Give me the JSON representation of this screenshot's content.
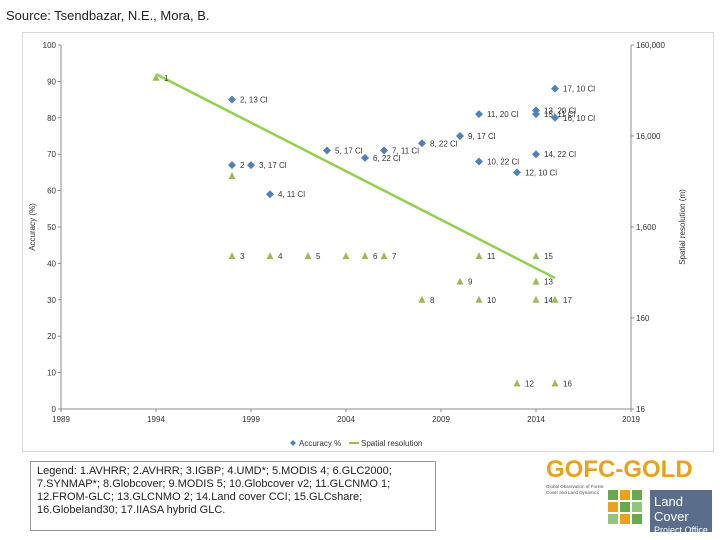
{
  "source": "Source: Tsendbazar, N.E., Mora, B.",
  "legend_text": "Legend: 1.AVHRR; 2.AVHRR; 3.IGBP; 4.UMD*; 5.MODIS 4; 6.GLC2000; 7.SYNMAP*; 8.Globcover; 9.MODIS 5; 10.Globcover v2; 11.GLCNMO 1; 12.FROM-GLC; 13.GLCNMO 2; 14.Land cover CCI; 15.GLCshare; 16.Globeland30; 17.IIASA hybrid GLC.",
  "logo": {
    "title": "GOFC-GOLD",
    "subtitle": "Global Observation of Forest Cover and Land Dynamics",
    "band_line1": "Land Cover",
    "band_line2": "Project Office"
  },
  "colors": {
    "accuracy": "#4f81bd",
    "spatial": "#9bbb59",
    "trend": "#92d050",
    "axis": "#8c8c8c"
  },
  "chart_data": {
    "type": "scatter",
    "xlim": [
      1989,
      2019
    ],
    "x_ticks": [
      1989,
      1994,
      1999,
      2004,
      2009,
      2014,
      2019
    ],
    "ylim_left": [
      0,
      100
    ],
    "y_ticks_left": [
      0,
      10,
      20,
      30,
      40,
      50,
      60,
      70,
      80,
      90,
      100
    ],
    "ylabel_left": "Accuracy (%)",
    "ylabel_right": "Spatial resolution (m)",
    "y_ticks_right": [
      "16",
      "160",
      "1,600",
      "16,000",
      "160,000"
    ],
    "legend": [
      "Accuracy %",
      "Spatial resolution"
    ],
    "accuracy_series": [
      {
        "x": 1998,
        "y": 85,
        "label": "2, 13 Cl"
      },
      {
        "x": 1998,
        "y": 67,
        "label": "2"
      },
      {
        "x": 1999,
        "y": 67,
        "label": "3, 17 Cl"
      },
      {
        "x": 2000,
        "y": 59,
        "label": "4, 11 Cl"
      },
      {
        "x": 2003,
        "y": 71,
        "label": "5, 17 Cl"
      },
      {
        "x": 2005,
        "y": 69,
        "label": "6, 22 Cl"
      },
      {
        "x": 2006,
        "y": 71,
        "label": "7, 11 Cl"
      },
      {
        "x": 2008,
        "y": 73,
        "label": "8, 22 Cl"
      },
      {
        "x": 2010,
        "y": 75,
        "label": "9, 17 Cl"
      },
      {
        "x": 2011,
        "y": 68,
        "label": "10, 22 Cl"
      },
      {
        "x": 2011,
        "y": 81,
        "label": "11, 20 Cl"
      },
      {
        "x": 2013,
        "y": 65,
        "label": "12, 10 Cl"
      },
      {
        "x": 2014,
        "y": 82,
        "label": "13, 20 Cl"
      },
      {
        "x": 2014,
        "y": 70,
        "label": "14, 22 Cl"
      },
      {
        "x": 2014,
        "y": 81,
        "label": "15, 11 Cl"
      },
      {
        "x": 2015,
        "y": 80,
        "label": "16, 10 Cl"
      },
      {
        "x": 2015,
        "y": 88,
        "label": "17, 10 Cl"
      }
    ],
    "spatial_series": [
      {
        "x": 1994,
        "y": 91,
        "label": "1"
      },
      {
        "x": 1998,
        "y": 64,
        "label": ""
      },
      {
        "x": 1998,
        "y": 42,
        "label": "3"
      },
      {
        "x": 2000,
        "y": 42,
        "label": "4"
      },
      {
        "x": 2002,
        "y": 42,
        "label": "5"
      },
      {
        "x": 2004,
        "y": 42,
        "label": ""
      },
      {
        "x": 2005,
        "y": 42,
        "label": "6"
      },
      {
        "x": 2006,
        "y": 42,
        "label": "7"
      },
      {
        "x": 2008,
        "y": 30,
        "label": "8"
      },
      {
        "x": 2010,
        "y": 35,
        "label": "9"
      },
      {
        "x": 2011,
        "y": 30,
        "label": "10"
      },
      {
        "x": 2011,
        "y": 42,
        "label": "11"
      },
      {
        "x": 2013,
        "y": 7,
        "label": "12"
      },
      {
        "x": 2014,
        "y": 35,
        "label": "13"
      },
      {
        "x": 2014,
        "y": 30,
        "label": "14"
      },
      {
        "x": 2014,
        "y": 42,
        "label": "15"
      },
      {
        "x": 2015,
        "y": 7,
        "label": "16"
      },
      {
        "x": 2015,
        "y": 30,
        "label": "17"
      }
    ],
    "trendline": {
      "x": [
        1994,
        2015
      ],
      "y": [
        92,
        36
      ]
    }
  }
}
